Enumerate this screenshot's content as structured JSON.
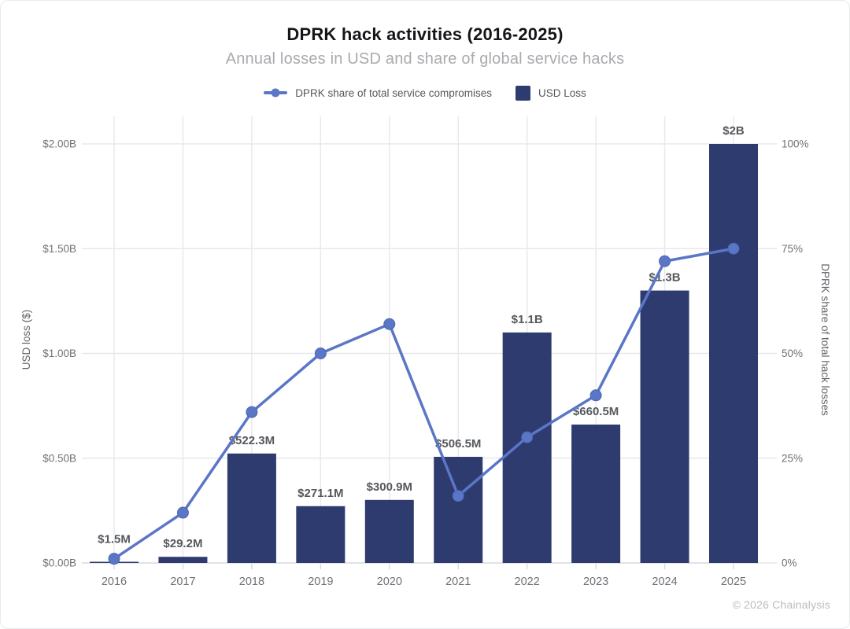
{
  "header": {
    "title": "DPRK hack activities (2016-2025)",
    "subtitle": "Annual losses in USD and share of global service hacks"
  },
  "legend": {
    "line_series_label": "DPRK share of total service compromises",
    "bar_series_label": "USD Loss"
  },
  "footer": {
    "credit": "© 2026 Chainalysis"
  },
  "colors": {
    "bar": "#2d3b6e",
    "line": "#5b76c6",
    "marker_stroke": "#4d66b4",
    "grid": "#e7e8ea",
    "axis_line": "#d7dadd",
    "tick_label": "#6d7176",
    "axis_title": "#5f6368",
    "value_label": "#55585c",
    "title": "#14161a",
    "subtitle": "#a8aaae",
    "credit": "#b9bcc2"
  },
  "chart_data": {
    "type": "bar",
    "combo": "bar series on left axis + line series on right axis",
    "title": "DPRK hack activities (2016-2025)",
    "subtitle": "Annual losses in USD and share of global service hacks",
    "categories": [
      "2016",
      "2017",
      "2018",
      "2019",
      "2020",
      "2021",
      "2022",
      "2023",
      "2024",
      "2025"
    ],
    "series": [
      {
        "name": "USD Loss",
        "kind": "bar",
        "axis": "left",
        "unit": "USD millions",
        "values": [
          1.5,
          29.2,
          522.3,
          271.1,
          300.9,
          506.5,
          1100,
          660.5,
          1300,
          2000
        ],
        "labels": [
          "$1.5M",
          "$29.2M",
          "$522.3M",
          "$271.1M",
          "$300.9M",
          "$506.5M",
          "$1.1B",
          "$660.5M",
          "$1.3B",
          "$2B"
        ]
      },
      {
        "name": "DPRK share of total service compromises",
        "kind": "line",
        "axis": "right",
        "unit": "percent",
        "values": [
          1,
          12,
          36,
          50,
          57,
          16,
          30,
          40,
          72,
          75
        ]
      }
    ],
    "left_axis": {
      "label": "USD loss ($)",
      "tick_labels": [
        "$0.00B",
        "$0.50B",
        "$1.00B",
        "$1.50B",
        "$2.00B"
      ],
      "range": [
        0,
        2000
      ],
      "unit": "USD millions"
    },
    "right_axis": {
      "label": "DPRK share of total hack losses",
      "tick_labels": [
        "0%",
        "25%",
        "50%",
        "75%",
        "100%"
      ],
      "range": [
        0,
        100
      ],
      "unit": "percent"
    },
    "x_axis": {
      "tick_labels": [
        "2016",
        "2017",
        "2018",
        "2019",
        "2020",
        "2021",
        "2022",
        "2023",
        "2024",
        "2025"
      ]
    },
    "grid": true,
    "legend_position": "top"
  }
}
